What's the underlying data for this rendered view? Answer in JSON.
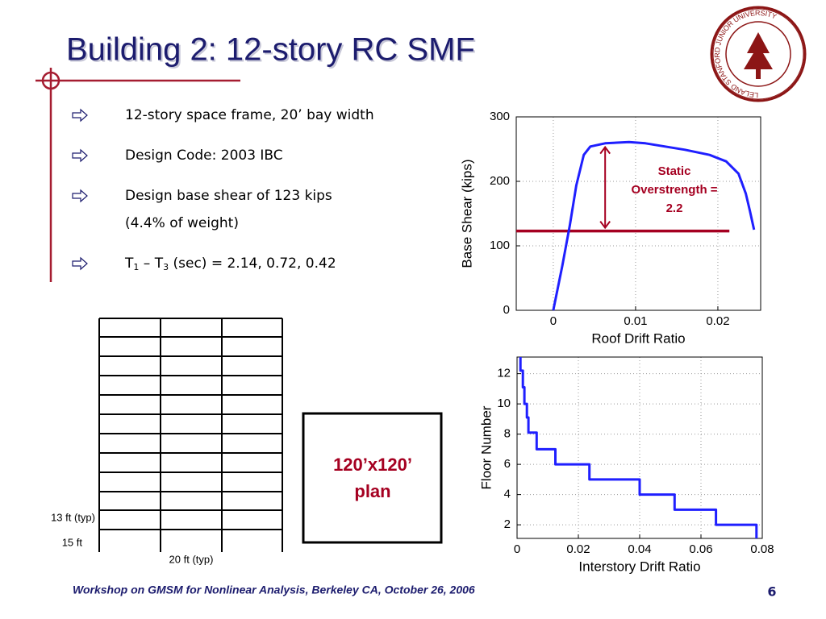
{
  "title": "Building 2: 12-story RC SMF",
  "seal_text": "LELAND STANFORD JUNIOR UNIVERSITY",
  "bullets": [
    {
      "lines": [
        "12-story space frame, 20’ bay width"
      ]
    },
    {
      "lines": [
        "Design Code: 2003 IBC"
      ]
    },
    {
      "lines": [
        "Design base shear of 123 kips",
        "(4.4% of weight)"
      ]
    },
    {
      "segments": [
        "T",
        "1",
        " – T",
        "3",
        " (sec) = 2.14, 0.72, 0.42"
      ]
    }
  ],
  "frame": {
    "story_label": "13 ft (typ)",
    "base_label": "15 ft",
    "bay_label": "20 ft (typ)"
  },
  "plan": {
    "lines": [
      "120’x120’",
      "plan"
    ]
  },
  "footer": "Workshop on GMSM for Nonlinear Analysis, Berkeley CA, October 26, 2006",
  "page_number": "6",
  "chart_data": [
    {
      "type": "line",
      "xlabel": "Roof Drift Ratio",
      "ylabel": "Base Shear (kips)",
      "x": [
        0,
        0.0011,
        0.002,
        0.0028,
        0.0037,
        0.0045,
        0.0063,
        0.0092,
        0.0112,
        0.016,
        0.019,
        0.021,
        0.0225,
        0.0234,
        0.0239,
        0.0244
      ],
      "values": [
        0,
        69,
        131,
        194,
        241,
        254,
        259,
        261,
        259,
        249,
        241,
        231,
        212,
        181,
        154,
        125
      ],
      "color": "#1f1fff",
      "xlim": [
        -0.0045,
        0.0252
      ],
      "ylim": [
        0,
        300
      ],
      "xticks": [
        0,
        0.01,
        0.02
      ],
      "yticks": [
        0,
        100,
        200,
        300
      ],
      "grid": true,
      "reference_line": {
        "value": 123,
        "x": [
          -0.0045,
          0.0214
        ],
        "color": "#a50021"
      },
      "arrow": {
        "x": 0.0063,
        "from": 128,
        "to": 253,
        "color": "#a50021"
      },
      "annotation": {
        "lines": [
          "Static",
          "Overstrength =",
          "2.2"
        ],
        "color": "#a50021"
      }
    },
    {
      "type": "line",
      "xlabel": "Interstory Drift Ratio",
      "ylabel": "Floor Number",
      "x": [
        0.0011,
        0.0011,
        0.0019,
        0.0019,
        0.0024,
        0.0024,
        0.0032,
        0.0032,
        0.0037,
        0.0037,
        0.0064,
        0.0064,
        0.0125,
        0.0125,
        0.0236,
        0.0236,
        0.04,
        0.04,
        0.0514,
        0.0514,
        0.0649,
        0.0649,
        0.0781,
        0.0781
      ],
      "values": [
        13.1,
        12.2,
        12.2,
        11.1,
        11.1,
        10,
        10,
        9.1,
        9.1,
        8.1,
        8.1,
        7,
        7,
        6,
        6,
        5,
        5,
        4,
        4,
        3,
        3,
        2,
        2,
        1.1
      ],
      "color": "#1f1fff",
      "xlim": [
        0,
        0.08
      ],
      "ylim": [
        1.1,
        13.1
      ],
      "xticks": [
        0,
        0.02,
        0.04,
        0.06,
        0.08
      ],
      "yticks": [
        2,
        4,
        6,
        8,
        10,
        12
      ],
      "grid": true
    }
  ]
}
